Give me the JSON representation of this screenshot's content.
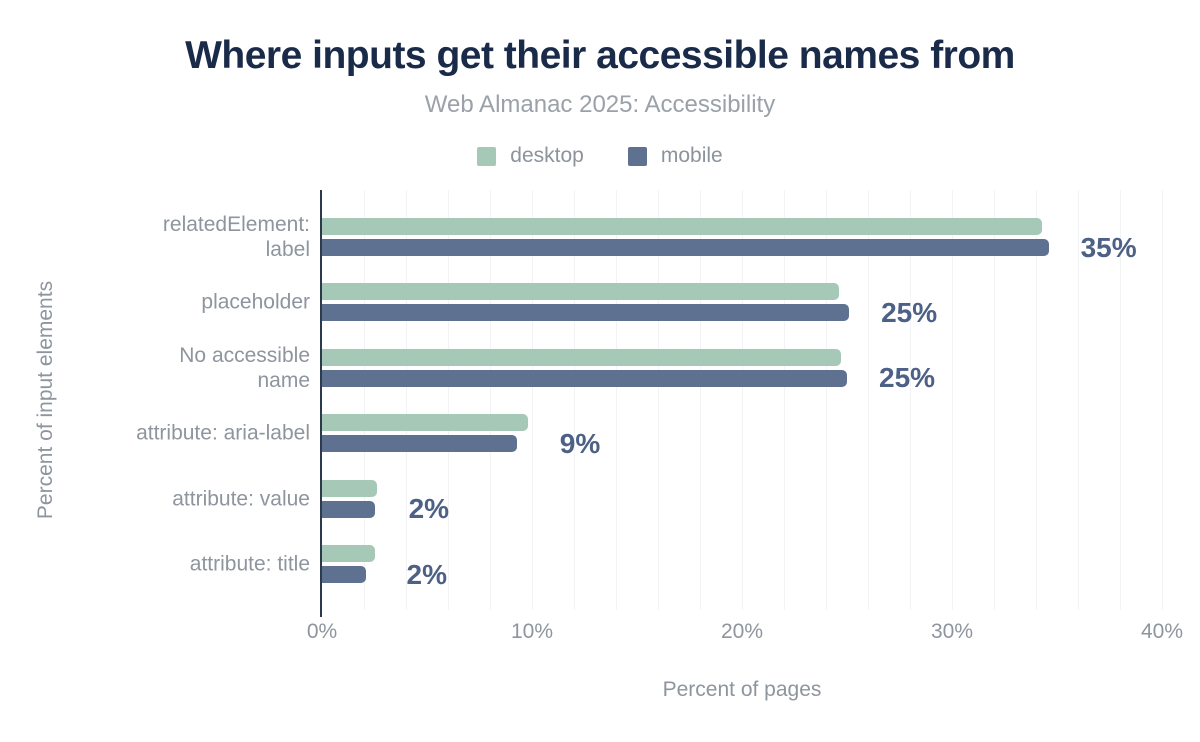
{
  "chart": {
    "title": "Where inputs get their accessible names from",
    "subtitle": "Web Almanac 2025: Accessibility",
    "xlabel": "Percent of pages",
    "ylabel": "Percent of input elements"
  },
  "chart_data": {
    "type": "bar",
    "orientation": "horizontal",
    "title": "Where inputs get their accessible names from",
    "subtitle": "Web Almanac 2025: Accessibility",
    "xlabel": "Percent of pages",
    "ylabel": "Percent of input elements",
    "categories": [
      "relatedElement:\nlabel",
      "placeholder",
      "No accessible\nname",
      "attribute: aria-label",
      "attribute: value",
      "attribute: title"
    ],
    "series": [
      {
        "name": "desktop",
        "color": "#a5c9b6",
        "values": [
          34.3,
          24.6,
          24.7,
          9.8,
          2.6,
          2.5
        ]
      },
      {
        "name": "mobile",
        "color": "#5e7190",
        "values": [
          34.6,
          25.1,
          25.0,
          9.3,
          2.5,
          2.1
        ]
      }
    ],
    "annotations": [
      "35%",
      "25%",
      "25%",
      "9%",
      "2%",
      "2%"
    ],
    "xlim": [
      0,
      40
    ],
    "xticks": [
      {
        "value": 0,
        "label": "0%"
      },
      {
        "value": 10,
        "label": "10%"
      },
      {
        "value": 20,
        "label": "20%"
      },
      {
        "value": 30,
        "label": "30%"
      },
      {
        "value": 40,
        "label": "40%"
      }
    ],
    "grid": {
      "vertical_step_percent": 2,
      "color": "#f2f3f5"
    },
    "legend_position": "top"
  },
  "colors": {
    "title": "#1a2b4a",
    "subtitle": "#9aa1a8",
    "axis_text": "#8e959e",
    "axis_line": "#2b3a4d",
    "annotation": "#4d6186",
    "desktop": "#a5c9b6",
    "mobile": "#5e7190",
    "background": "#ffffff"
  }
}
